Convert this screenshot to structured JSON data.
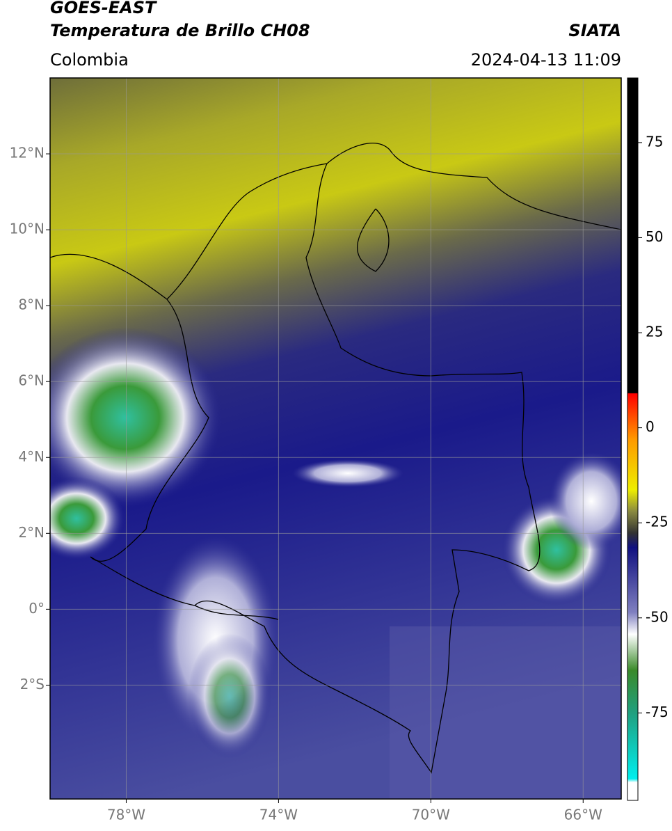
{
  "header": {
    "title_line1": "GOES-EAST",
    "title_line2": "Temperatura de Brillo CH08",
    "source": "SIATA",
    "region": "Colombia",
    "datetime": "2024-04-13 11:09"
  },
  "map": {
    "lonlim": [
      -80,
      -65
    ],
    "latlim": [
      -5,
      14
    ],
    "lon_ticks": [
      {
        "value": -78,
        "label": "78°W"
      },
      {
        "value": -74,
        "label": "74°W"
      },
      {
        "value": -70,
        "label": "70°W"
      },
      {
        "value": -66,
        "label": "66°W"
      }
    ],
    "lat_ticks": [
      {
        "value": 12,
        "label": "12°N"
      },
      {
        "value": 10,
        "label": "10°N"
      },
      {
        "value": 8,
        "label": "8°N"
      },
      {
        "value": 6,
        "label": "6°N"
      },
      {
        "value": 4,
        "label": "4°N"
      },
      {
        "value": 2,
        "label": "2°N"
      },
      {
        "value": 0,
        "label": "0°"
      },
      {
        "value": -2,
        "label": "2°S"
      }
    ]
  },
  "colorbar": {
    "lim": [
      -98,
      92
    ],
    "ticks": [
      75,
      50,
      25,
      0,
      -25,
      -50,
      -75
    ]
  }
}
